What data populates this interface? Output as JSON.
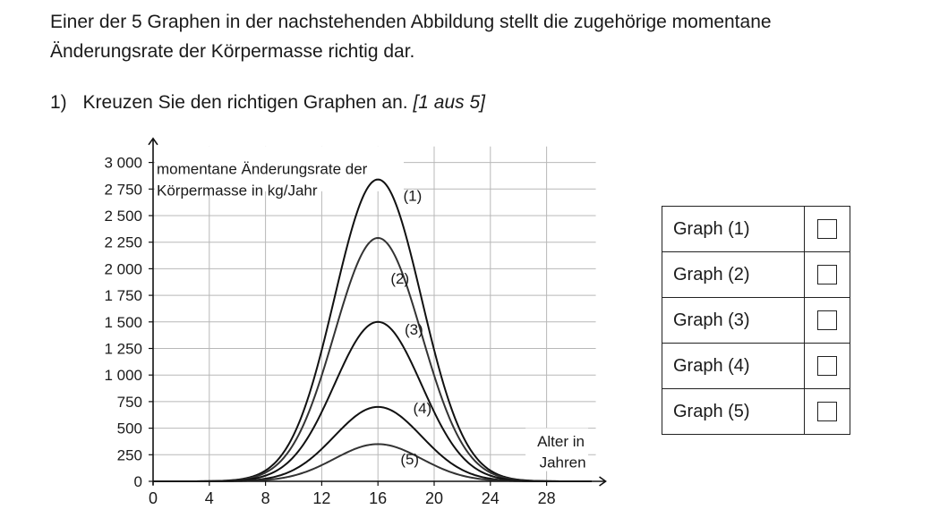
{
  "intro": {
    "line1": "Einer der 5 Graphen in der nachstehenden Abbildung stellt die zugehörige momentane",
    "line2": "Änderungsrate der Körpermasse richtig dar."
  },
  "task": {
    "number": "1)",
    "text": "Kreuzen Sie den richtigen Graphen an.",
    "hint": "[1 aus 5]"
  },
  "answers": [
    {
      "label": "Graph (1)",
      "checked": false
    },
    {
      "label": "Graph (2)",
      "checked": false
    },
    {
      "label": "Graph (3)",
      "checked": false
    },
    {
      "label": "Graph (4)",
      "checked": false
    },
    {
      "label": "Graph (5)",
      "checked": false
    }
  ],
  "chart_data": {
    "type": "line",
    "ylabel_line1": "momentane Änderungsrate der",
    "ylabel_line2": "Körpermasse in kg/Jahr",
    "xlabel_line1": "Alter in",
    "xlabel_line2": "Jahren",
    "xlim": [
      0,
      31.5
    ],
    "ylim": [
      0,
      3150
    ],
    "x_ticks": [
      0,
      4,
      8,
      12,
      16,
      20,
      24,
      28
    ],
    "x_tick_labels": [
      "0",
      "4",
      "8",
      "12",
      "16",
      "20",
      "24",
      "28"
    ],
    "y_ticks": [
      0,
      250,
      500,
      750,
      1000,
      1250,
      1500,
      1750,
      2000,
      2250,
      2500,
      2750,
      3000
    ],
    "y_tick_labels": [
      "0",
      "250",
      "500",
      "750",
      "1 000",
      "1 250",
      "1 500",
      "1 750",
      "2 000",
      "2 250",
      "2 500",
      "2 750",
      "3 000"
    ],
    "grid": true,
    "series": [
      {
        "name": "(1)",
        "peak_x": 16,
        "peak_y": 2840,
        "color": "#111111",
        "label_x": 17.8,
        "label_y": 2640
      },
      {
        "name": "(2)",
        "peak_x": 16,
        "peak_y": 2290,
        "color": "#333333",
        "label_x": 16.9,
        "label_y": 1860
      },
      {
        "name": "(3)",
        "peak_x": 16,
        "peak_y": 1500,
        "color": "#111111",
        "label_x": 17.9,
        "label_y": 1380
      },
      {
        "name": "(4)",
        "peak_x": 16,
        "peak_y": 700,
        "color": "#111111",
        "label_x": 18.5,
        "label_y": 640
      },
      {
        "name": "(5)",
        "peak_x": 16,
        "peak_y": 350,
        "color": "#333333",
        "label_x": 17.6,
        "label_y": 160
      }
    ]
  }
}
